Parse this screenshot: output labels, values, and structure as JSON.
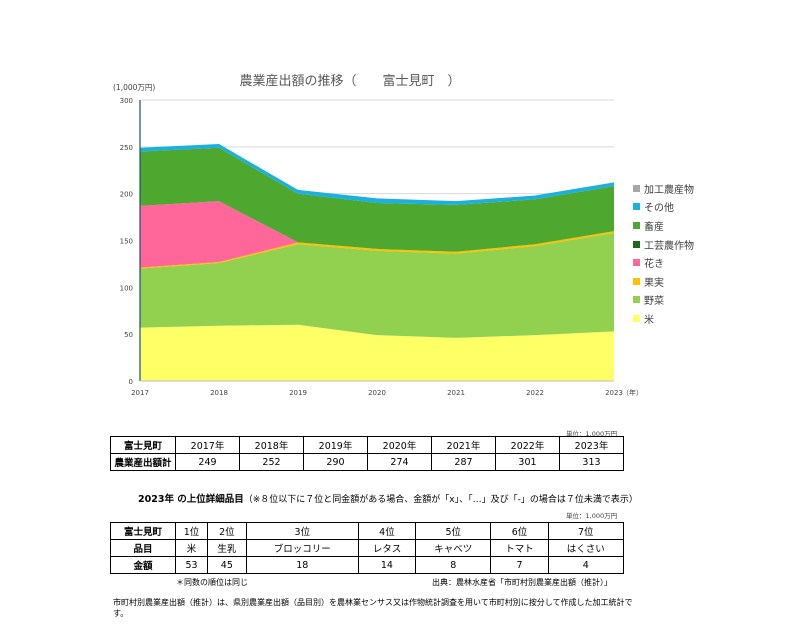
{
  "chart_data": {
    "type": "area",
    "stacked": true,
    "title": "農業産出額の推移（　　富士見町　）",
    "unit": "(1,000万円)",
    "x": [
      "2017",
      "2018",
      "2019",
      "2020",
      "2021",
      "2022",
      "2023"
    ],
    "x_suffix": "（年）",
    "ylim": [
      0,
      300
    ],
    "yticks": [
      0,
      50,
      100,
      150,
      200,
      250,
      300
    ],
    "grid": true,
    "legend_position": "right",
    "series": [
      {
        "name": "米",
        "color": "#ffff66",
        "values": [
          57,
          59,
          60,
          49,
          46,
          49,
          53
        ]
      },
      {
        "name": "野菜",
        "color": "#92d050",
        "values": [
          63,
          67,
          86,
          90,
          90,
          95,
          105
        ]
      },
      {
        "name": "果実",
        "color": "#ffc000",
        "values": [
          1,
          1,
          2,
          2,
          2,
          2,
          2
        ]
      },
      {
        "name": "花き",
        "color": "#ff6699",
        "values": [
          66,
          65,
          0,
          0,
          0,
          0,
          0
        ]
      },
      {
        "name": "工芸農作物",
        "color": "#1e6b1e",
        "values": [
          0,
          0,
          0,
          0,
          0,
          0,
          0
        ]
      },
      {
        "name": "畜産",
        "color": "#4ea72e",
        "values": [
          58,
          57,
          52,
          49,
          50,
          48,
          48
        ]
      },
      {
        "name": "その他",
        "color": "#1ab0e0",
        "values": [
          4,
          4,
          4,
          5,
          4,
          4,
          4
        ]
      },
      {
        "name": "加工農産物",
        "color": "#a6a6a6",
        "values": [
          0,
          0,
          0,
          0,
          0,
          0,
          0
        ]
      }
    ]
  },
  "legend_order": [
    "加工農産物",
    "その他",
    "畜産",
    "工芸農作物",
    "花き",
    "果実",
    "野菜",
    "米"
  ],
  "table1": {
    "unit": "単位：1,000万円",
    "header": "富士見町",
    "row_label": "農業産出額計",
    "years": [
      "2017年",
      "2018年",
      "2019年",
      "2020年",
      "2021年",
      "2022年",
      "2023年"
    ],
    "values": [
      "249",
      "252",
      "290",
      "274",
      "287",
      "301",
      "313"
    ]
  },
  "detail": {
    "title_bold": "2023年 の上位詳細品目",
    "title_note": "（※８位以下に７位と同金額がある場合、金額が「x」、「…」及び「-」の場合は７位未満で表示）",
    "unit": "単位：1,000万円",
    "header": "富士見町",
    "ranks": [
      "1位",
      "2位",
      "3位",
      "4位",
      "5位",
      "6位",
      "7位"
    ],
    "item_label": "品目",
    "items": [
      "米",
      "生乳",
      "ブロッコリー",
      "レタス",
      "キャベツ",
      "トマト",
      "はくさい"
    ],
    "amount_label": "金額",
    "amounts": [
      "53",
      "45",
      "18",
      "14",
      "8",
      "7",
      "4"
    ]
  },
  "notes": {
    "same_rank": "＊同数の順位は同じ",
    "source": "出典：農林水産省「市町村別農業産出額（推計）」",
    "footnote": "市町村別農業産出額（推計）は、県別農業産出額（品目別）を農林業センサス又は作物統計調査を用いて市町村別に按分して作成した加工統計です。"
  }
}
